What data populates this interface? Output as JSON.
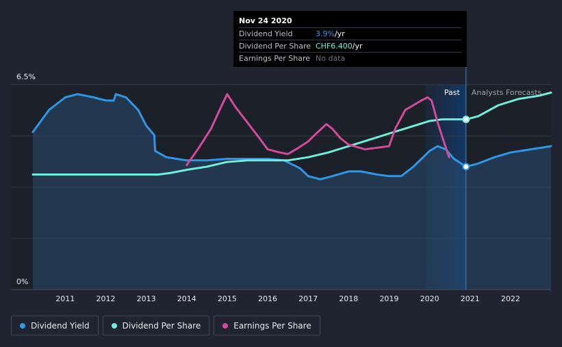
{
  "tooltip": {
    "date": "Nov 24 2020",
    "rows": [
      {
        "label": "Dividend Yield",
        "value": "3.9%",
        "unit": " /yr"
      },
      {
        "label": "Dividend Per Share",
        "value": "CHF6.400",
        "unit": " /yr"
      },
      {
        "label": "Earnings Per Share",
        "value": "No data",
        "unit": ""
      }
    ]
  },
  "zones": {
    "past": "Past",
    "forecast": "Analysts Forecasts"
  },
  "legend": [
    {
      "label": "Dividend Yield",
      "color": "#2e97e8"
    },
    {
      "label": "Dividend Per Share",
      "color": "#6ff0dc"
    },
    {
      "label": "Earnings Per Share",
      "color": "#d34b9a"
    }
  ],
  "chart_data": {
    "type": "line",
    "y_ticks": [
      "6.5%",
      "0%"
    ],
    "ylim": [
      0,
      6.5
    ],
    "x_ticks": [
      "2011",
      "2012",
      "2013",
      "2014",
      "2015",
      "2016",
      "2017",
      "2018",
      "2019",
      "2020",
      "2021",
      "2022"
    ],
    "xlim": [
      2010.2,
      2023.0
    ],
    "past_start": 2019.9,
    "cursor_x": 2020.9,
    "grid": true,
    "series": [
      {
        "name": "Dividend Yield",
        "color": "#2e97e8",
        "filled": true,
        "points": [
          [
            2010.2,
            5.0
          ],
          [
            2010.6,
            5.7
          ],
          [
            2011.0,
            6.1
          ],
          [
            2011.3,
            6.2
          ],
          [
            2011.7,
            6.1
          ],
          [
            2012.0,
            6.0
          ],
          [
            2012.2,
            6.0
          ],
          [
            2012.25,
            6.2
          ],
          [
            2012.5,
            6.1
          ],
          [
            2012.8,
            5.7
          ],
          [
            2013.0,
            5.2
          ],
          [
            2013.2,
            4.9
          ],
          [
            2013.22,
            4.4
          ],
          [
            2013.5,
            4.2
          ],
          [
            2014.0,
            4.1
          ],
          [
            2014.5,
            4.1
          ],
          [
            2015.0,
            4.15
          ],
          [
            2015.5,
            4.15
          ],
          [
            2016.0,
            4.15
          ],
          [
            2016.4,
            4.1
          ],
          [
            2016.8,
            3.85
          ],
          [
            2017.0,
            3.6
          ],
          [
            2017.3,
            3.5
          ],
          [
            2017.6,
            3.6
          ],
          [
            2018.0,
            3.75
          ],
          [
            2018.3,
            3.75
          ],
          [
            2018.7,
            3.65
          ],
          [
            2019.0,
            3.6
          ],
          [
            2019.3,
            3.6
          ],
          [
            2019.6,
            3.9
          ],
          [
            2020.0,
            4.4
          ],
          [
            2020.2,
            4.55
          ],
          [
            2020.4,
            4.45
          ],
          [
            2020.6,
            4.15
          ],
          [
            2020.9,
            3.9
          ],
          [
            2021.2,
            4.0
          ],
          [
            2021.6,
            4.2
          ],
          [
            2022.0,
            4.35
          ],
          [
            2022.5,
            4.45
          ],
          [
            2023.0,
            4.55
          ]
        ]
      },
      {
        "name": "Dividend Per Share",
        "color": "#6ff0dc",
        "filled": false,
        "points": [
          [
            2010.2,
            3.65
          ],
          [
            2011.0,
            3.65
          ],
          [
            2012.0,
            3.65
          ],
          [
            2013.0,
            3.65
          ],
          [
            2013.3,
            3.65
          ],
          [
            2013.6,
            3.7
          ],
          [
            2014.0,
            3.8
          ],
          [
            2014.5,
            3.9
          ],
          [
            2015.0,
            4.05
          ],
          [
            2015.5,
            4.1
          ],
          [
            2016.0,
            4.1
          ],
          [
            2016.5,
            4.1
          ],
          [
            2017.0,
            4.2
          ],
          [
            2017.5,
            4.35
          ],
          [
            2018.0,
            4.55
          ],
          [
            2018.5,
            4.75
          ],
          [
            2019.0,
            4.95
          ],
          [
            2019.5,
            5.15
          ],
          [
            2020.0,
            5.35
          ],
          [
            2020.3,
            5.4
          ],
          [
            2020.6,
            5.4
          ],
          [
            2020.9,
            5.4
          ],
          [
            2021.2,
            5.5
          ],
          [
            2021.7,
            5.85
          ],
          [
            2022.2,
            6.05
          ],
          [
            2022.7,
            6.15
          ],
          [
            2023.0,
            6.25
          ]
        ]
      },
      {
        "name": "Earnings Per Share",
        "color": "#d34b9a",
        "filled": false,
        "points": [
          [
            2014.0,
            3.95
          ],
          [
            2014.3,
            4.5
          ],
          [
            2014.6,
            5.1
          ],
          [
            2014.85,
            5.8
          ],
          [
            2015.0,
            6.2
          ],
          [
            2015.2,
            5.8
          ],
          [
            2015.5,
            5.3
          ],
          [
            2015.8,
            4.8
          ],
          [
            2016.0,
            4.45
          ],
          [
            2016.3,
            4.35
          ],
          [
            2016.5,
            4.3
          ],
          [
            2016.7,
            4.45
          ],
          [
            2017.0,
            4.7
          ],
          [
            2017.2,
            4.95
          ],
          [
            2017.45,
            5.25
          ],
          [
            2017.6,
            5.1
          ],
          [
            2017.8,
            4.8
          ],
          [
            2018.0,
            4.6
          ],
          [
            2018.4,
            4.45
          ],
          [
            2018.7,
            4.5
          ],
          [
            2019.0,
            4.55
          ],
          [
            2019.15,
            5.1
          ],
          [
            2019.4,
            5.7
          ],
          [
            2019.6,
            5.85
          ],
          [
            2019.8,
            6.0
          ],
          [
            2019.95,
            6.1
          ],
          [
            2020.05,
            6.0
          ],
          [
            2020.2,
            5.3
          ],
          [
            2020.35,
            4.7
          ],
          [
            2020.48,
            4.2
          ]
        ]
      }
    ]
  }
}
